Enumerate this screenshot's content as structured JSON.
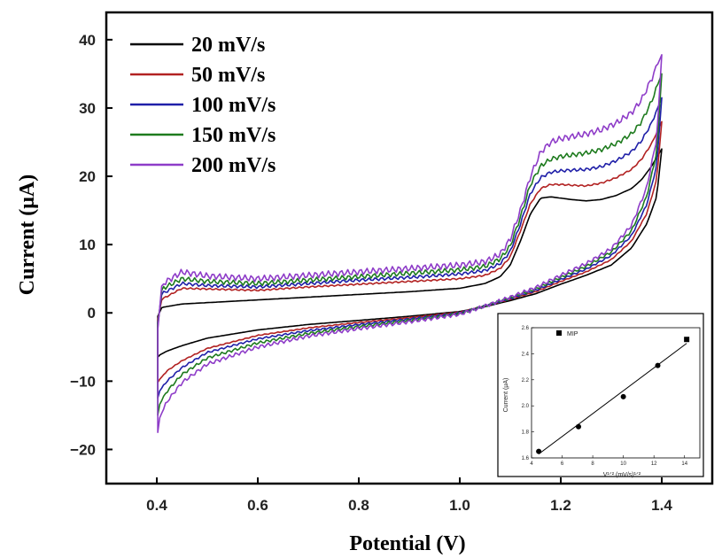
{
  "chart_data": [
    {
      "type": "line",
      "title": "",
      "xlabel": "Potential (V)",
      "ylabel": "Current (μA)",
      "xlim": [
        0.3,
        1.5
      ],
      "ylim": [
        -25,
        44
      ],
      "x_ticks": [
        0.4,
        0.6,
        0.8,
        1.0,
        1.2,
        1.4
      ],
      "x_tick_labels": [
        "0.4",
        "0.6",
        "0.8",
        "1.0",
        "1.2",
        "1.4"
      ],
      "y_ticks": [
        -20,
        -10,
        0,
        10,
        20,
        30,
        40
      ],
      "y_tick_labels": [
        "−20",
        "−10",
        "0",
        "10",
        "20",
        "30",
        "40"
      ],
      "grid": false,
      "legend_position": "top-left",
      "series": [
        {
          "name": "20 mV/s",
          "color": "#000000",
          "scale": 0.0,
          "forward": [
            [
              0.402,
              -0.5
            ],
            [
              0.41,
              0.8
            ],
            [
              0.45,
              1.3
            ],
            [
              0.5,
              1.5
            ],
            [
              0.6,
              1.9
            ],
            [
              0.7,
              2.3
            ],
            [
              0.8,
              2.7
            ],
            [
              0.9,
              3.1
            ],
            [
              1.0,
              3.6
            ],
            [
              1.05,
              4.3
            ],
            [
              1.08,
              5.3
            ],
            [
              1.1,
              7.0
            ],
            [
              1.12,
              10.5
            ],
            [
              1.14,
              14.5
            ],
            [
              1.16,
              16.8
            ],
            [
              1.18,
              17.0
            ],
            [
              1.2,
              16.8
            ],
            [
              1.22,
              16.6
            ],
            [
              1.25,
              16.4
            ],
            [
              1.28,
              16.6
            ],
            [
              1.31,
              17.2
            ],
            [
              1.34,
              18.2
            ],
            [
              1.36,
              19.5
            ],
            [
              1.38,
              21.5
            ],
            [
              1.4,
              24.0
            ]
          ],
          "reverse": [
            [
              1.4,
              24.0
            ],
            [
              1.39,
              17.0
            ],
            [
              1.37,
              13.0
            ],
            [
              1.34,
              9.5
            ],
            [
              1.3,
              7.0
            ],
            [
              1.25,
              5.5
            ],
            [
              1.2,
              4.2
            ],
            [
              1.15,
              2.8
            ],
            [
              1.1,
              1.8
            ],
            [
              1.05,
              0.9
            ],
            [
              1.0,
              0.2
            ],
            [
              0.9,
              -0.5
            ],
            [
              0.8,
              -1.1
            ],
            [
              0.7,
              -1.7
            ],
            [
              0.6,
              -2.5
            ],
            [
              0.5,
              -3.7
            ],
            [
              0.45,
              -4.8
            ],
            [
              0.42,
              -5.6
            ],
            [
              0.405,
              -6.2
            ],
            [
              0.402,
              -6.5
            ]
          ]
        },
        {
          "name": "50 mV/s",
          "color": "#b22222",
          "scale": 0.25,
          "forward": [
            [
              0.402,
              -1.0
            ],
            [
              0.41,
              2.0
            ],
            [
              0.45,
              3.6
            ],
            [
              0.5,
              3.5
            ],
            [
              0.6,
              3.3
            ],
            [
              0.7,
              3.8
            ],
            [
              0.8,
              4.2
            ],
            [
              0.9,
              4.6
            ],
            [
              1.0,
              5.0
            ],
            [
              1.05,
              5.5
            ],
            [
              1.08,
              6.5
            ],
            [
              1.1,
              8.2
            ],
            [
              1.12,
              12.0
            ],
            [
              1.14,
              16.0
            ],
            [
              1.16,
              18.2
            ],
            [
              1.18,
              18.8
            ],
            [
              1.2,
              18.8
            ],
            [
              1.22,
              18.7
            ],
            [
              1.25,
              18.6
            ],
            [
              1.28,
              19.0
            ],
            [
              1.31,
              19.8
            ],
            [
              1.34,
              21.0
            ],
            [
              1.36,
              22.5
            ],
            [
              1.38,
              24.8
            ],
            [
              1.4,
              28.0
            ]
          ],
          "reverse": [
            [
              1.4,
              28.0
            ],
            [
              1.39,
              19.5
            ],
            [
              1.37,
              14.5
            ],
            [
              1.34,
              10.5
            ],
            [
              1.3,
              7.8
            ],
            [
              1.25,
              6.0
            ],
            [
              1.2,
              4.6
            ],
            [
              1.15,
              3.1
            ],
            [
              1.1,
              2.0
            ],
            [
              1.05,
              1.0
            ],
            [
              1.0,
              0.1
            ],
            [
              0.9,
              -0.7
            ],
            [
              0.8,
              -1.4
            ],
            [
              0.7,
              -2.2
            ],
            [
              0.6,
              -3.3
            ],
            [
              0.5,
              -5.2
            ],
            [
              0.45,
              -7.0
            ],
            [
              0.42,
              -8.5
            ],
            [
              0.405,
              -9.8
            ],
            [
              0.402,
              -10.2
            ]
          ]
        },
        {
          "name": "100 mV/s",
          "color": "#1f1fa8",
          "scale": 0.5,
          "forward": [
            [
              0.402,
              -1.5
            ],
            [
              0.41,
              2.8
            ],
            [
              0.45,
              4.3
            ],
            [
              0.5,
              4.0
            ],
            [
              0.6,
              3.8
            ],
            [
              0.7,
              4.3
            ],
            [
              0.8,
              4.8
            ],
            [
              0.9,
              5.2
            ],
            [
              1.0,
              5.7
            ],
            [
              1.05,
              6.2
            ],
            [
              1.08,
              7.2
            ],
            [
              1.1,
              9.0
            ],
            [
              1.12,
              13.0
            ],
            [
              1.14,
              17.5
            ],
            [
              1.16,
              19.8
            ],
            [
              1.18,
              20.6
            ],
            [
              1.2,
              20.8
            ],
            [
              1.22,
              20.9
            ],
            [
              1.25,
              21.0
            ],
            [
              1.28,
              21.4
            ],
            [
              1.31,
              22.3
            ],
            [
              1.34,
              23.6
            ],
            [
              1.36,
              25.2
            ],
            [
              1.38,
              27.8
            ],
            [
              1.4,
              31.5
            ]
          ],
          "reverse": [
            [
              1.4,
              31.5
            ],
            [
              1.39,
              21.5
            ],
            [
              1.37,
              15.8
            ],
            [
              1.34,
              11.3
            ],
            [
              1.3,
              8.4
            ],
            [
              1.25,
              6.4
            ],
            [
              1.2,
              4.9
            ],
            [
              1.15,
              3.3
            ],
            [
              1.1,
              2.1
            ],
            [
              1.05,
              1.0
            ],
            [
              1.0,
              0.0
            ],
            [
              0.9,
              -0.9
            ],
            [
              0.8,
              -1.7
            ],
            [
              0.7,
              -2.6
            ],
            [
              0.6,
              -3.8
            ],
            [
              0.5,
              -5.8
            ],
            [
              0.45,
              -8.0
            ],
            [
              0.42,
              -10.0
            ],
            [
              0.405,
              -11.5
            ],
            [
              0.402,
              -12.5
            ]
          ]
        },
        {
          "name": "150 mV/s",
          "color": "#1e7b1e",
          "scale": 0.75,
          "forward": [
            [
              0.402,
              -2.0
            ],
            [
              0.41,
              3.5
            ],
            [
              0.45,
              5.0
            ],
            [
              0.5,
              4.6
            ],
            [
              0.6,
              4.3
            ],
            [
              0.7,
              4.8
            ],
            [
              0.8,
              5.3
            ],
            [
              0.9,
              5.8
            ],
            [
              1.0,
              6.3
            ],
            [
              1.05,
              6.8
            ],
            [
              1.08,
              7.9
            ],
            [
              1.1,
              9.8
            ],
            [
              1.12,
              14.0
            ],
            [
              1.14,
              18.8
            ],
            [
              1.16,
              21.5
            ],
            [
              1.18,
              22.5
            ],
            [
              1.2,
              22.9
            ],
            [
              1.22,
              23.1
            ],
            [
              1.25,
              23.4
            ],
            [
              1.28,
              23.9
            ],
            [
              1.31,
              24.8
            ],
            [
              1.34,
              26.2
            ],
            [
              1.36,
              28.0
            ],
            [
              1.38,
              31.0
            ],
            [
              1.4,
              35.0
            ]
          ],
          "reverse": [
            [
              1.4,
              35.0
            ],
            [
              1.39,
              23.5
            ],
            [
              1.37,
              17.0
            ],
            [
              1.34,
              12.0
            ],
            [
              1.3,
              8.9
            ],
            [
              1.25,
              6.8
            ],
            [
              1.2,
              5.2
            ],
            [
              1.15,
              3.5
            ],
            [
              1.1,
              2.2
            ],
            [
              1.05,
              1.0
            ],
            [
              1.0,
              -0.1
            ],
            [
              0.9,
              -1.1
            ],
            [
              0.8,
              -2.0
            ],
            [
              0.7,
              -3.0
            ],
            [
              0.6,
              -4.4
            ],
            [
              0.5,
              -6.6
            ],
            [
              0.45,
              -9.0
            ],
            [
              0.42,
              -11.5
            ],
            [
              0.405,
              -13.5
            ],
            [
              0.402,
              -15.0
            ]
          ]
        },
        {
          "name": "200 mV/s",
          "color": "#8e3cc8",
          "scale": 1.0,
          "forward": [
            [
              0.402,
              -2.5
            ],
            [
              0.41,
              4.2
            ],
            [
              0.45,
              6.0
            ],
            [
              0.5,
              5.4
            ],
            [
              0.6,
              5.0
            ],
            [
              0.7,
              5.5
            ],
            [
              0.8,
              6.0
            ],
            [
              0.9,
              6.5
            ],
            [
              1.0,
              7.0
            ],
            [
              1.05,
              7.5
            ],
            [
              1.08,
              8.6
            ],
            [
              1.1,
              10.8
            ],
            [
              1.12,
              15.0
            ],
            [
              1.14,
              20.0
            ],
            [
              1.16,
              23.5
            ],
            [
              1.18,
              25.0
            ],
            [
              1.2,
              25.5
            ],
            [
              1.22,
              25.8
            ],
            [
              1.25,
              26.2
            ],
            [
              1.28,
              26.8
            ],
            [
              1.31,
              27.8
            ],
            [
              1.34,
              29.3
            ],
            [
              1.36,
              31.2
            ],
            [
              1.38,
              34.3
            ],
            [
              1.4,
              37.8
            ]
          ],
          "reverse": [
            [
              1.4,
              37.8
            ],
            [
              1.39,
              25.5
            ],
            [
              1.37,
              18.3
            ],
            [
              1.34,
              12.8
            ],
            [
              1.3,
              9.4
            ],
            [
              1.25,
              7.2
            ],
            [
              1.2,
              5.5
            ],
            [
              1.15,
              3.7
            ],
            [
              1.1,
              2.3
            ],
            [
              1.05,
              1.0
            ],
            [
              1.0,
              -0.2
            ],
            [
              0.9,
              -1.3
            ],
            [
              0.8,
              -2.3
            ],
            [
              0.7,
              -3.4
            ],
            [
              0.6,
              -5.0
            ],
            [
              0.5,
              -7.5
            ],
            [
              0.45,
              -10.2
            ],
            [
              0.42,
              -13.0
            ],
            [
              0.405,
              -15.5
            ],
            [
              0.402,
              -17.5
            ]
          ]
        }
      ]
    },
    {
      "type": "scatter",
      "title": "",
      "xlabel": "V¹ᐟ² (mV/s)¹ᐟ²",
      "ylabel": "Current (μA)",
      "xlim": [
        4,
        15
      ],
      "ylim": [
        1.6,
        2.6
      ],
      "x_ticks": [
        4,
        6,
        8,
        10,
        12,
        14
      ],
      "x_tick_labels": [
        "4",
        "6",
        "8",
        "10",
        "12",
        "14"
      ],
      "y_ticks": [
        1.6,
        1.8,
        2.0,
        2.2,
        2.4,
        2.6
      ],
      "y_tick_labels": [
        "1.6",
        "1.8",
        "2.0",
        "2.2",
        "2.4",
        "2.6"
      ],
      "grid": false,
      "legend_position": "top-left",
      "series": [
        {
          "name": "MIP",
          "x": [
            4.47,
            7.07,
            10.0,
            12.25,
            14.14
          ],
          "y": [
            1.65,
            1.84,
            2.07,
            2.31,
            2.51
          ]
        }
      ],
      "fit_line": {
        "x": [
          4.47,
          14.14
        ],
        "y": [
          1.63,
          2.48
        ]
      }
    }
  ]
}
